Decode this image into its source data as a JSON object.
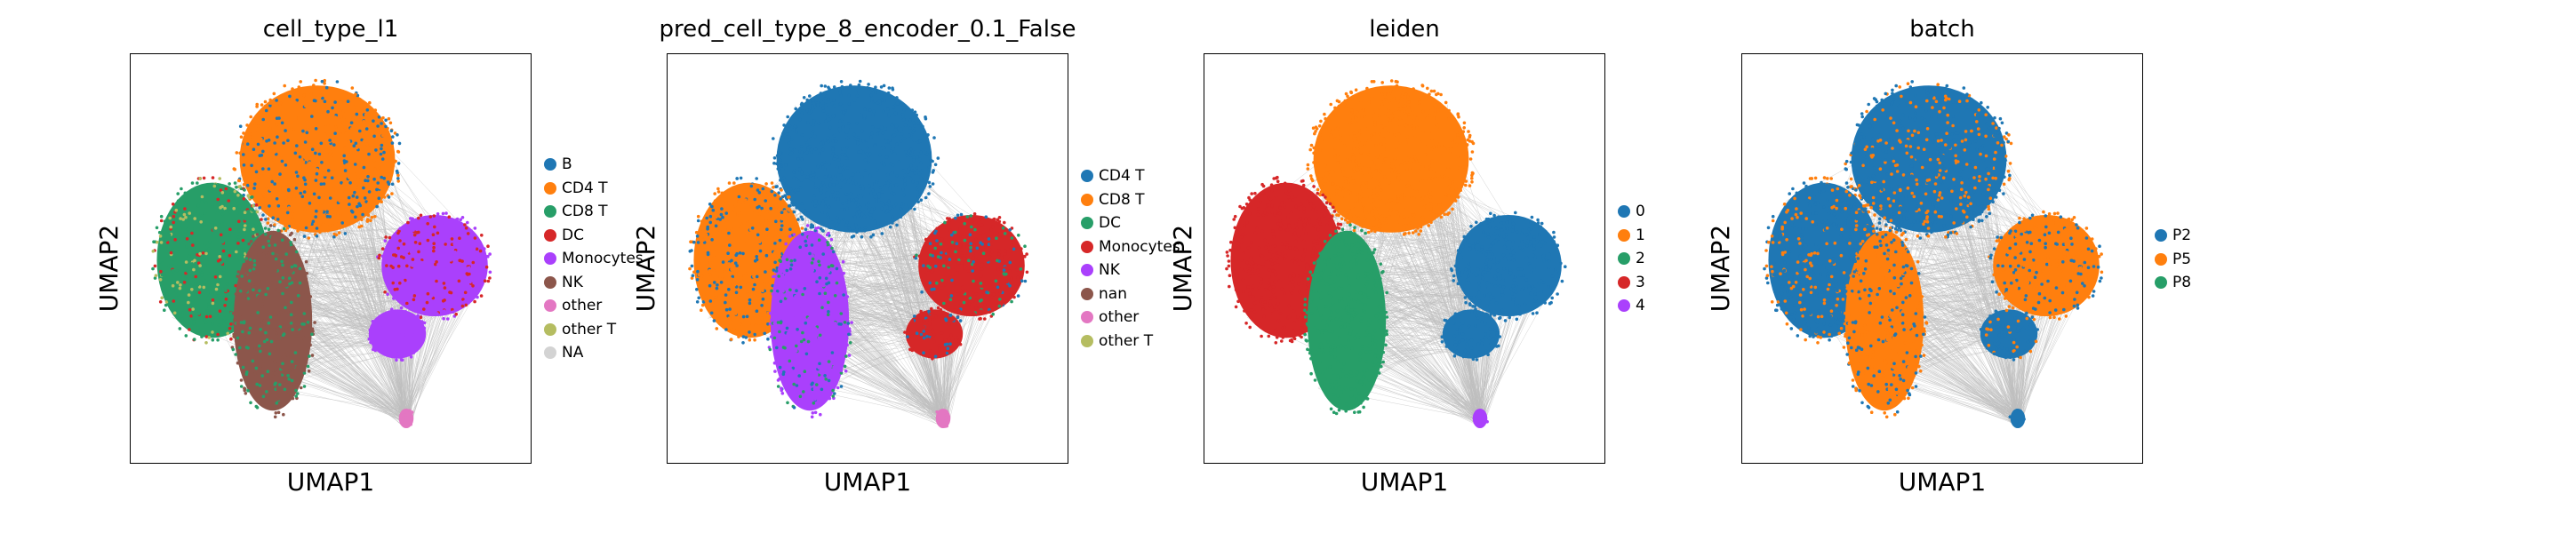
{
  "chart_data": [
    {
      "type": "scatter",
      "title": "cell_type_l1",
      "xlabel": "UMAP1",
      "ylabel": "UMAP2",
      "legend_position": "right",
      "legend": [
        {
          "label": "B",
          "color": "#1f77b4"
        },
        {
          "label": "CD4 T",
          "color": "#ff7f0e"
        },
        {
          "label": "CD8 T",
          "color": "#279e68"
        },
        {
          "label": "DC",
          "color": "#d62728"
        },
        {
          "label": "Monocytes",
          "color": "#aa40fc"
        },
        {
          "label": "NK",
          "color": "#8c564b"
        },
        {
          "label": "other",
          "color": "#e377c2"
        },
        {
          "label": "other T",
          "color": "#b5bd61"
        },
        {
          "label": "NA",
          "color": "#d3d3d3"
        }
      ]
    },
    {
      "type": "scatter",
      "title": "pred_cell_type_8_encoder_0.1_False",
      "xlabel": "UMAP1",
      "ylabel": "UMAP2",
      "legend_position": "right",
      "legend": [
        {
          "label": "CD4 T",
          "color": "#1f77b4"
        },
        {
          "label": "CD8 T",
          "color": "#ff7f0e"
        },
        {
          "label": "DC",
          "color": "#279e68"
        },
        {
          "label": "Monocytes",
          "color": "#d62728"
        },
        {
          "label": "NK",
          "color": "#aa40fc"
        },
        {
          "label": "nan",
          "color": "#8c564b"
        },
        {
          "label": "other",
          "color": "#e377c2"
        },
        {
          "label": "other T",
          "color": "#b5bd61"
        }
      ]
    },
    {
      "type": "scatter",
      "title": "leiden",
      "xlabel": "UMAP1",
      "ylabel": "UMAP2",
      "legend_position": "right",
      "legend": [
        {
          "label": "0",
          "color": "#1f77b4"
        },
        {
          "label": "1",
          "color": "#ff7f0e"
        },
        {
          "label": "2",
          "color": "#279e68"
        },
        {
          "label": "3",
          "color": "#d62728"
        },
        {
          "label": "4",
          "color": "#aa40fc"
        }
      ]
    },
    {
      "type": "scatter",
      "title": "batch",
      "xlabel": "UMAP1",
      "ylabel": "UMAP2",
      "legend_position": "right",
      "legend": [
        {
          "label": "P2",
          "color": "#1f77b4"
        },
        {
          "label": "P5",
          "color": "#ff7f0e"
        },
        {
          "label": "P8",
          "color": "#279e68"
        }
      ]
    }
  ]
}
